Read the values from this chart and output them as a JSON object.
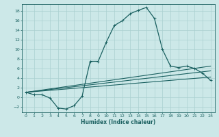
{
  "xlabel": "Humidex (Indice chaleur)",
  "ylabel": "",
  "bg_color": "#cce8e8",
  "grid_color": "#aad0d0",
  "line_color": "#1a6060",
  "xlim": [
    -0.5,
    23.5
  ],
  "ylim": [
    -3.2,
    19.5
  ],
  "xticks": [
    0,
    1,
    2,
    3,
    4,
    5,
    6,
    7,
    8,
    9,
    10,
    11,
    12,
    13,
    14,
    15,
    16,
    17,
    18,
    19,
    20,
    21,
    22,
    23
  ],
  "yticks": [
    -2,
    0,
    2,
    4,
    6,
    8,
    10,
    12,
    14,
    16,
    18
  ],
  "main_series": {
    "x": [
      0,
      1,
      2,
      3,
      4,
      5,
      6,
      7,
      8,
      9,
      10,
      11,
      12,
      13,
      14,
      15,
      16,
      17,
      18,
      19,
      20,
      21,
      22,
      23
    ],
    "y": [
      1.0,
      0.5,
      0.5,
      -0.2,
      -2.3,
      -2.5,
      -1.8,
      0.2,
      7.5,
      7.5,
      11.5,
      15.0,
      16.0,
      17.5,
      18.2,
      18.8,
      16.5,
      10.0,
      6.5,
      6.2,
      6.5,
      6.0,
      5.0,
      3.5
    ],
    "marker": "+",
    "markersize": 3.5,
    "linewidth": 0.9
  },
  "trend_lines": [
    {
      "x": [
        0,
        23
      ],
      "y": [
        1.0,
        6.5
      ],
      "linewidth": 0.8
    },
    {
      "x": [
        0,
        23
      ],
      "y": [
        1.0,
        5.5
      ],
      "linewidth": 0.8
    },
    {
      "x": [
        0,
        23
      ],
      "y": [
        1.0,
        4.2
      ],
      "linewidth": 0.8
    }
  ]
}
